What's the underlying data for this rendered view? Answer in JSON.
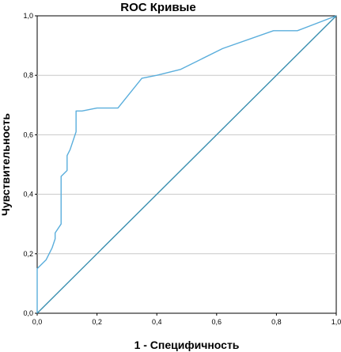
{
  "chart_data": {
    "type": "line",
    "title": "ROC Кривые",
    "xlabel": "1 - Специфичность",
    "ylabel": "Чувствительность",
    "xlim": [
      0,
      1
    ],
    "ylim": [
      0,
      1
    ],
    "x_ticks": [
      "0,0",
      "0,2",
      "0,4",
      "0,6",
      "0,8",
      "1,0"
    ],
    "y_ticks": [
      "0,0",
      "0,2",
      "0,4",
      "0,6",
      "0,8",
      "1,0"
    ],
    "grid": "horizontal",
    "series": [
      {
        "role": "roc-curve",
        "color": "#5aaedc",
        "x": [
          0.0,
          0.0,
          0.03,
          0.05,
          0.06,
          0.06,
          0.08,
          0.08,
          0.1,
          0.1,
          0.11,
          0.13,
          0.13,
          0.15,
          0.2,
          0.27,
          0.35,
          0.4,
          0.48,
          0.62,
          0.79,
          0.87,
          1.0
        ],
        "y": [
          0.0,
          0.15,
          0.18,
          0.22,
          0.25,
          0.27,
          0.3,
          0.46,
          0.48,
          0.53,
          0.55,
          0.61,
          0.68,
          0.68,
          0.69,
          0.69,
          0.79,
          0.8,
          0.82,
          0.89,
          0.95,
          0.95,
          1.0
        ]
      },
      {
        "role": "reference-line",
        "color": "#3a8fb0",
        "x": [
          0.0,
          1.0
        ],
        "y": [
          0.0,
          1.0
        ]
      }
    ]
  }
}
